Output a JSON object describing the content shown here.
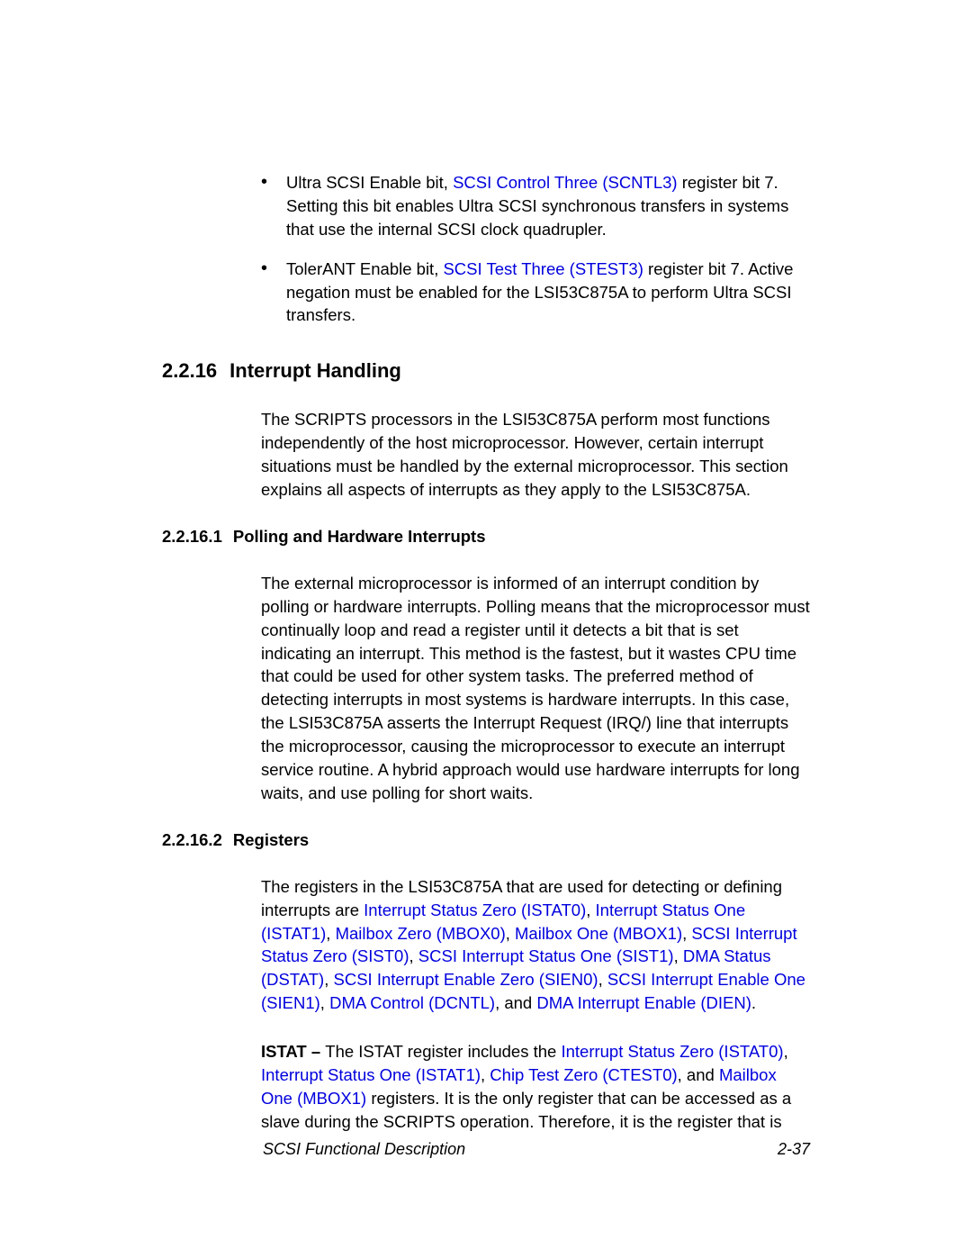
{
  "colors": {
    "background": "#ffffff",
    "text": "#000000",
    "link": "#0000dd"
  },
  "typography": {
    "body_fontsize": 18.5,
    "heading_fontsize": 22,
    "footer_fontsize": 18,
    "font_family": "Arial, Helvetica, sans-serif"
  },
  "bullets": [
    {
      "pre": "Ultra SCSI Enable bit, ",
      "link": "SCSI Control Three (SCNTL3)",
      "post": " register bit 7. Setting this bit enables Ultra SCSI synchronous transfers in systems that use the internal SCSI clock quadrupler."
    },
    {
      "pre": "TolerANT Enable bit, ",
      "link": "SCSI Test Three (STEST3)",
      "post": " register bit 7. Active negation must be enabled for the LSI53C875A to perform Ultra SCSI transfers."
    }
  ],
  "section": {
    "number": "2.2.16",
    "title": "Interrupt Handling",
    "para": "The SCRIPTS processors in the LSI53C875A perform most functions independently of the host microprocessor. However, certain interrupt situations must be handled by the external microprocessor. This section explains all aspects of interrupts as they apply to the LSI53C875A."
  },
  "sub1": {
    "number": "2.2.16.1",
    "title": "Polling and Hardware Interrupts",
    "para": "The external microprocessor is informed of an interrupt condition by polling or hardware interrupts. Polling means that the microprocessor must continually loop and read a register until it detects a bit that is set indicating an interrupt. This method is the fastest, but it wastes CPU time that could be used for other system tasks. The preferred method of detecting interrupts in most systems is hardware interrupts. In this case, the LSI53C875A asserts the Interrupt Request (IRQ/) line that interrupts the microprocessor, causing the microprocessor to execute an interrupt service routine. A hybrid approach would use hardware interrupts for long waits, and use polling for short waits."
  },
  "sub2": {
    "number": "2.2.16.2",
    "title": "Registers",
    "para_intro": "The registers in the LSI53C875A that are used for detecting or defining interrupts are ",
    "links": {
      "istat0": "Interrupt Status Zero (ISTAT0)",
      "istat1": "Interrupt Status One (ISTAT1)",
      "mbox0": "Mailbox Zero (MBOX0)",
      "mbox1": "Mailbox One (MBOX1)",
      "sist0": "SCSI Interrupt Status Zero (SIST0)",
      "sist1": "SCSI Interrupt Status One (SIST1)",
      "dstat": "DMA Status (DSTAT)",
      "sien0": "SCSI Interrupt Enable Zero (SIEN0)",
      "sien1": "SCSI Interrupt Enable One (SIEN1)",
      "dcntl": "DMA Control (DCNTL)",
      "dien": "DMA Interrupt Enable (DIEN)"
    },
    "and_text": ", and ",
    "period": ".",
    "comma": ", ",
    "istat_label": "ISTAT – ",
    "istat_intro": "The ISTAT register includes the ",
    "istat_links": {
      "istat0": "Interrupt Status Zero (ISTAT0)",
      "istat1": "Interrupt Status One (ISTAT1)",
      "ctest0": "Chip Test Zero (CTEST0)",
      "mbox1": "Mailbox One (MBOX1)"
    },
    "istat_outro": " registers. It is the only register that can be accessed as a slave during the SCRIPTS operation. Therefore, it is the register that is"
  },
  "footer": {
    "left": "SCSI Functional Description",
    "right": "2-37"
  }
}
